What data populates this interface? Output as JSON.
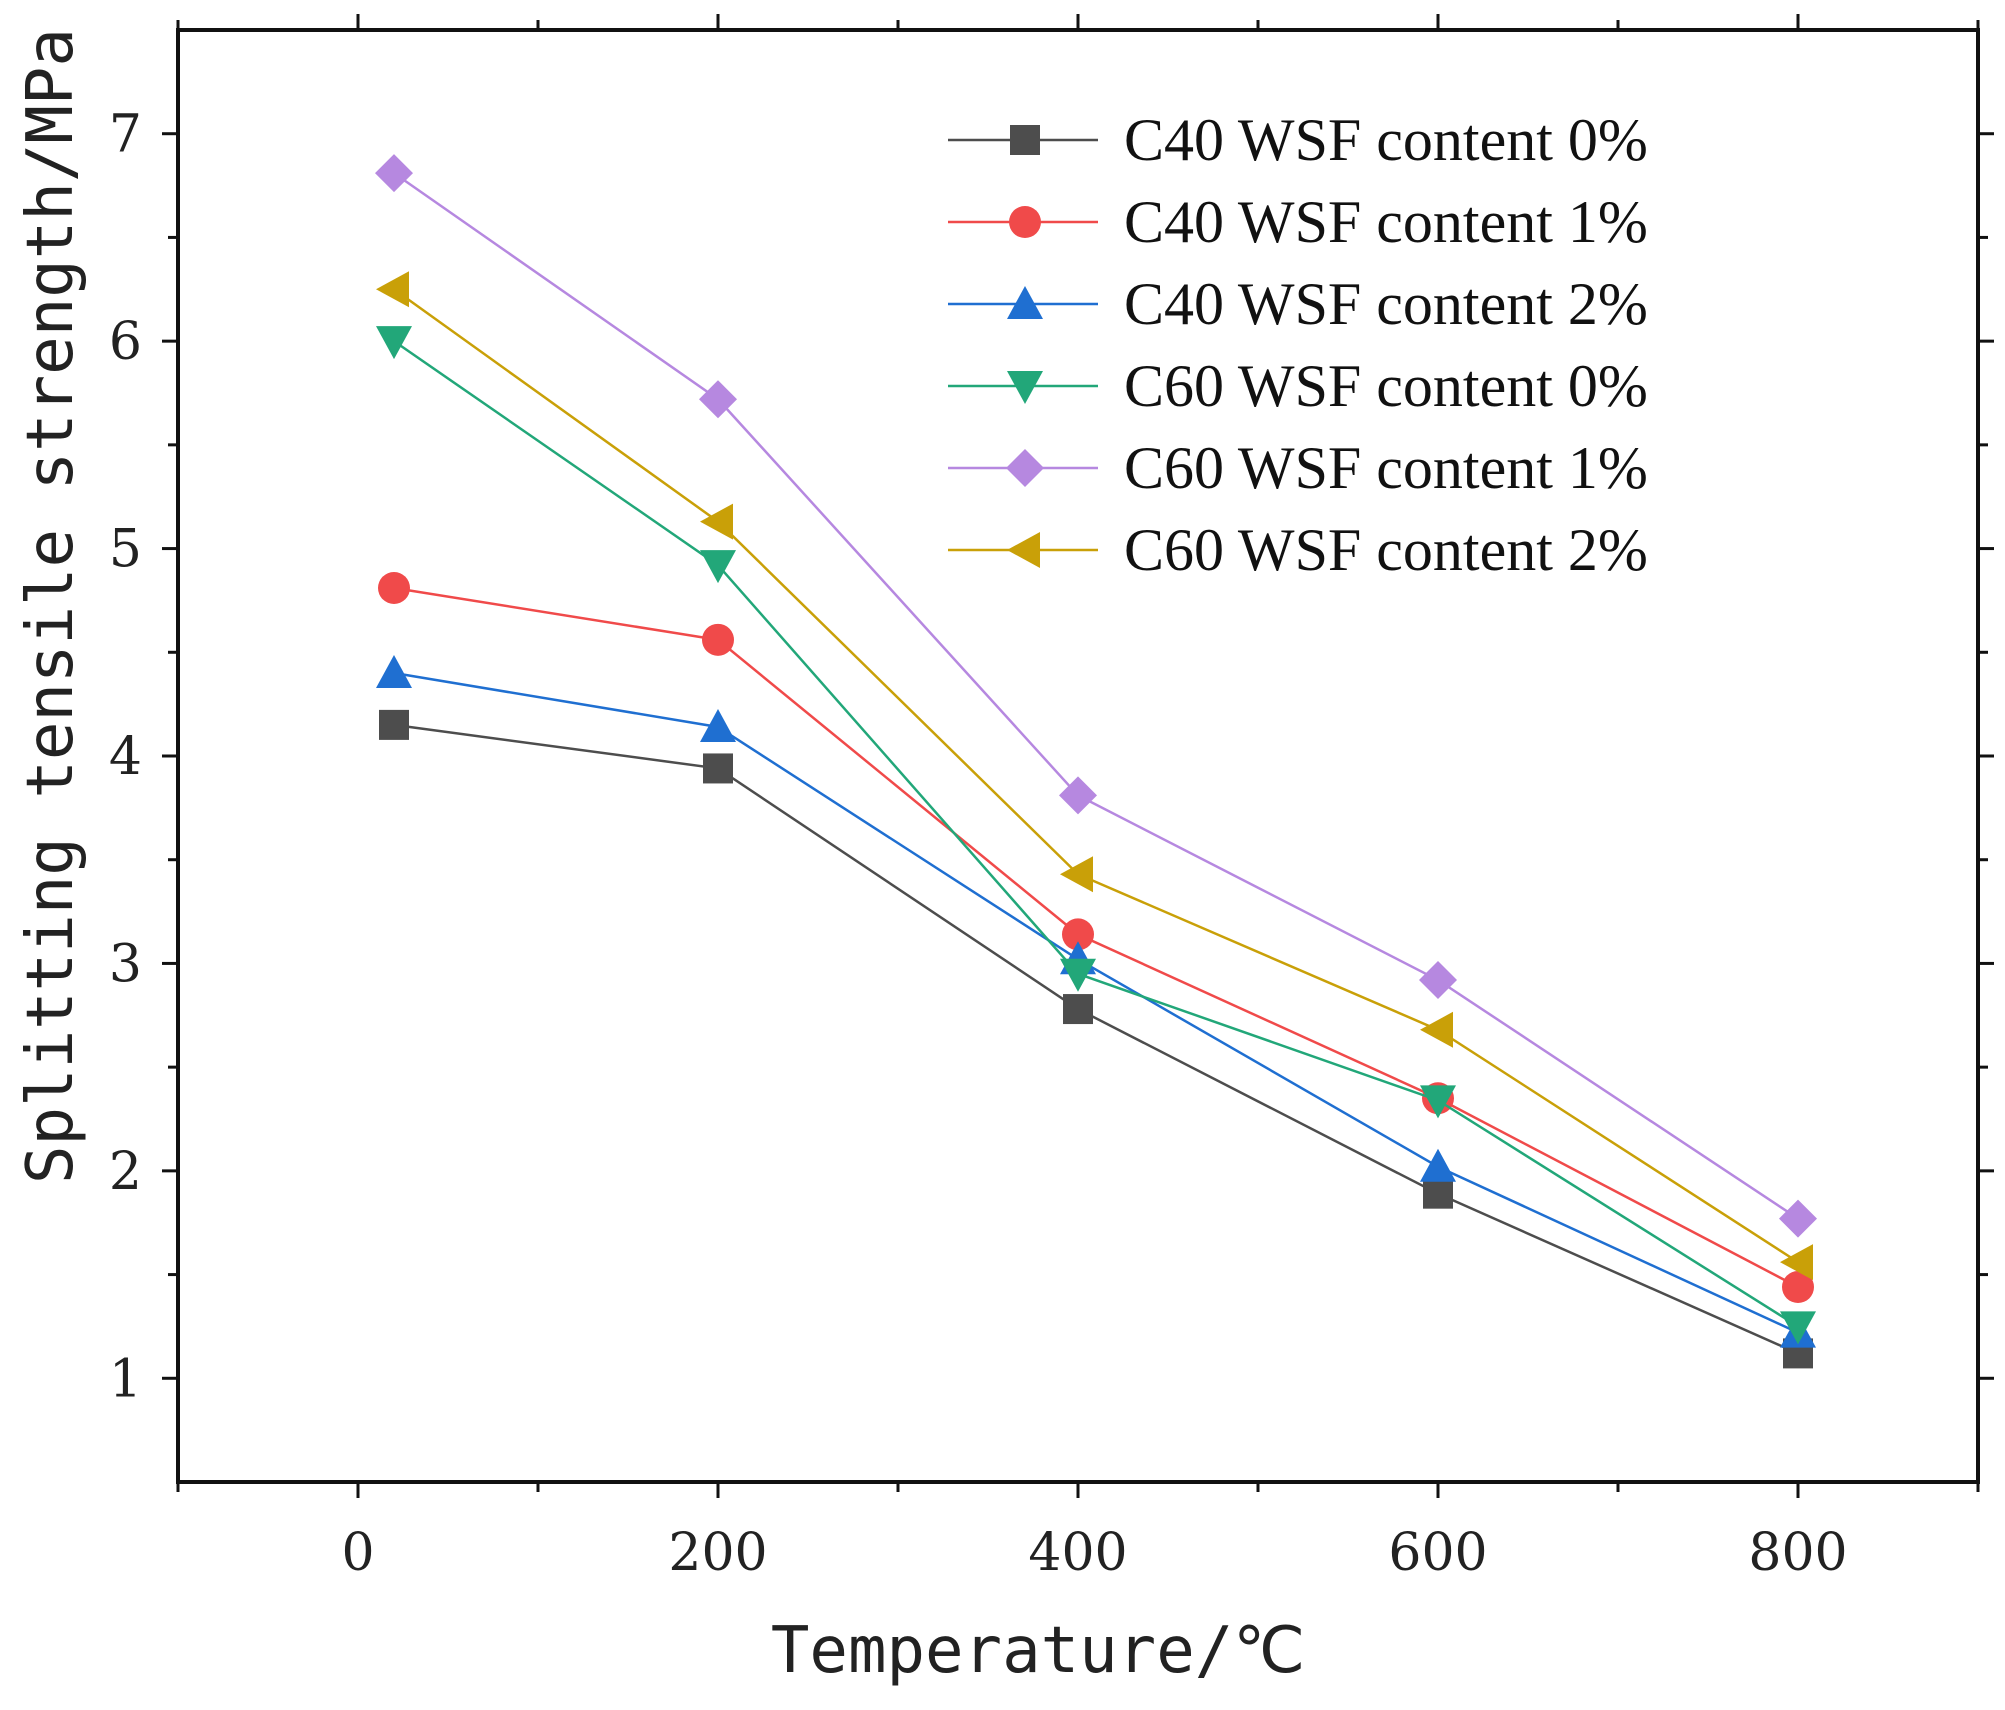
{
  "chart_data": {
    "type": "line",
    "xlabel": "Temperature/℃",
    "ylabel": "Splitting tensile strength/MPa",
    "xlim": [
      -100,
      900
    ],
    "ylim": [
      0.5,
      7.5
    ],
    "x_ticks": [
      0,
      200,
      400,
      600,
      800
    ],
    "y_ticks": [
      1,
      2,
      3,
      4,
      5,
      6,
      7
    ],
    "x": [
      20,
      200,
      400,
      600,
      800
    ],
    "grid": false,
    "legend_position": "top-right",
    "series": [
      {
        "name": "C40 WSF content 0%",
        "values": [
          4.15,
          3.94,
          2.78,
          1.89,
          1.12
        ],
        "color": "#4d4d4d",
        "marker": "square"
      },
      {
        "name": "C40 WSF content 1%",
        "values": [
          4.81,
          4.56,
          3.14,
          2.35,
          1.44
        ],
        "color": "#f04a4a",
        "marker": "circle"
      },
      {
        "name": "C40 WSF content 2%",
        "values": [
          4.4,
          4.14,
          3.02,
          2.02,
          1.22
        ],
        "color": "#1f6fd1",
        "marker": "triangle-up"
      },
      {
        "name": "C60 WSF content 0%",
        "values": [
          6.0,
          4.92,
          2.95,
          2.34,
          1.25
        ],
        "color": "#22a779",
        "marker": "triangle-down"
      },
      {
        "name": "C60 WSF content 1%",
        "values": [
          6.81,
          5.72,
          3.81,
          2.92,
          1.77
        ],
        "color": "#b688e0",
        "marker": "diamond"
      },
      {
        "name": "C60 WSF content 2%",
        "values": [
          6.25,
          5.13,
          3.43,
          2.68,
          1.56
        ],
        "color": "#c9a008",
        "marker": "triangle-left"
      }
    ]
  }
}
